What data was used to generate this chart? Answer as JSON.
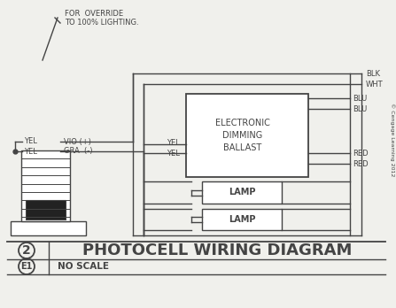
{
  "bg_color": "#f0f0ec",
  "line_color": "#444444",
  "title": "PHOTOCELL WIRING DIAGRAM",
  "subtitle": "NO SCALE",
  "diagram_num": "2",
  "ref": "E1",
  "copyright": "© Cengage Learning 2012",
  "override_text_1": "FOR  OVERRIDE",
  "override_text_2": "TO 100% LIGHTING.",
  "ballast_label": [
    "ELECTRONIC",
    "DIMMING",
    "BALLAST"
  ],
  "lamp_label": "LAMP",
  "right_labels": [
    "BLK",
    "WHT",
    "BLU",
    "BLU",
    "RED",
    "RED"
  ]
}
